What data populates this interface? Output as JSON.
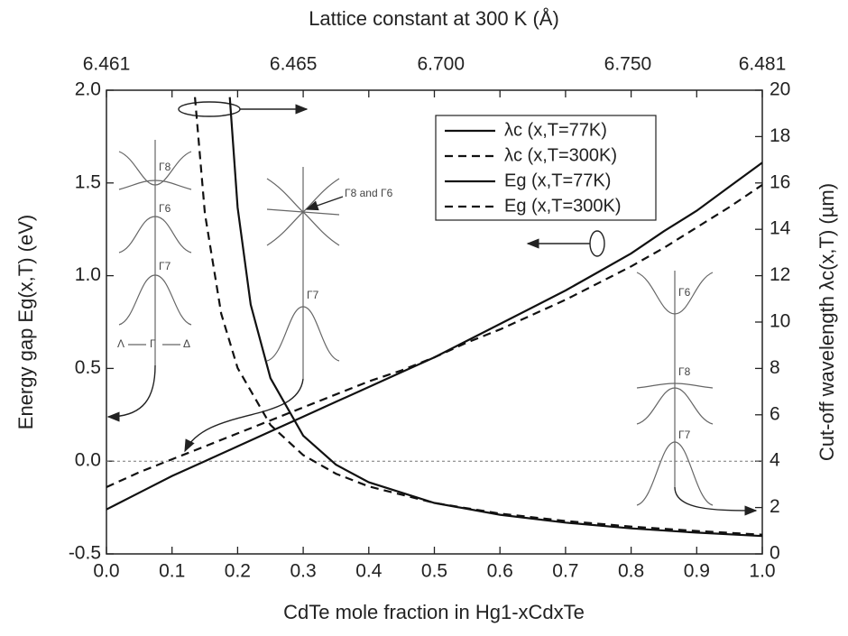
{
  "chart_data": {
    "type": "line",
    "xlabel": "CdTe mole fraction in Hg1-xCdxTe",
    "ylabel": "Energy gap Eg(x,T) (eV)",
    "y2label": "Cut-off wavelength λc(x,T) (µm)",
    "x2label": "Lattice constant at 300 K (Å)",
    "x2ticks": [
      "6.461",
      "6.465",
      "6.700",
      "6.750",
      "6.481"
    ],
    "xlim": [
      0,
      1
    ],
    "xticks": [
      {
        "value": 0,
        "label": "0.0"
      },
      0.1,
      0.2,
      0.3,
      0.4,
      0.5,
      0.6,
      0.7,
      0.8,
      0.9,
      {
        "value": 1,
        "label": "1.0"
      }
    ],
    "ylim": [
      -0.5,
      2
    ],
    "yticks": [
      -0.5,
      {
        "value": 0,
        "label": "0.0"
      },
      0.5,
      {
        "value": 1,
        "label": "1.0"
      },
      1.5,
      {
        "value": 2,
        "label": "2.0"
      }
    ],
    "y2lim": [
      0,
      20
    ],
    "y2ticks": [
      0,
      2,
      4,
      6,
      8,
      10,
      12,
      14,
      16,
      18,
      20
    ],
    "ref_line": 0,
    "legend": "upper center",
    "series": [
      {
        "name": "λc (x,T=77K)",
        "color": "#111111",
        "linestyle": "solid",
        "axis": "y2",
        "x": [
          0.188,
          0.2,
          0.22,
          0.25,
          0.3,
          0.35,
          0.4,
          0.5,
          0.6,
          0.7,
          0.8,
          0.9,
          1
        ],
        "values": [
          19.7,
          14.94,
          10.75,
          7.58,
          5.1,
          3.85,
          3.09,
          2.2,
          1.69,
          1.35,
          1.1,
          0.92,
          0.77
        ]
      },
      {
        "name": "λc (x,T=300K)",
        "color": "#111111",
        "linestyle": "dashed",
        "axis": "y2",
        "x": [
          0.135,
          0.15,
          0.175,
          0.2,
          0.25,
          0.3,
          0.35,
          0.4,
          0.5,
          0.6,
          0.7,
          0.8,
          0.9,
          1
        ],
        "values": [
          19.7,
          14.69,
          10.36,
          8.02,
          5.56,
          4.26,
          3.46,
          2.91,
          2.2,
          1.74,
          1.42,
          1.18,
          0.99,
          0.83
        ]
      },
      {
        "name": "Eg (x,T=77K)",
        "color": "#111111",
        "linestyle": "solid",
        "x": [
          0,
          0.05,
          0.1,
          0.15,
          0.2,
          0.25,
          0.3,
          0.35,
          0.4,
          0.45,
          0.5,
          0.55,
          0.6,
          0.65,
          0.7,
          0.75,
          0.8,
          0.85,
          0.9,
          0.95,
          1
        ],
        "values": [
          -0.26,
          -0.17,
          -0.08,
          0,
          0.08,
          0.16,
          0.24,
          0.32,
          0.4,
          0.48,
          0.56,
          0.65,
          0.74,
          0.83,
          0.92,
          1.02,
          1.12,
          1.24,
          1.35,
          1.48,
          1.61
        ]
      },
      {
        "name": "Eg (x,T=300K)",
        "color": "#111111",
        "linestyle": "dashed",
        "x": [
          0,
          0.05,
          0.1,
          0.15,
          0.2,
          0.25,
          0.3,
          0.35,
          0.4,
          0.45,
          0.5,
          0.55,
          0.6,
          0.65,
          0.7,
          0.75,
          0.8,
          0.85,
          0.9,
          0.95,
          1
        ],
        "values": [
          -0.14,
          -0.06,
          0.01,
          0.08,
          0.15,
          0.22,
          0.29,
          0.36,
          0.43,
          0.49,
          0.56,
          0.64,
          0.71,
          0.79,
          0.87,
          0.96,
          1.05,
          1.15,
          1.26,
          1.37,
          1.49
        ]
      }
    ],
    "annotations": [
      "Γ8",
      "Γ6",
      "Γ7",
      "Λ",
      "Γ",
      "Δ",
      "Γ8 and Γ6",
      "Γ7",
      "Γ6",
      "Γ8",
      "Γ7"
    ]
  }
}
